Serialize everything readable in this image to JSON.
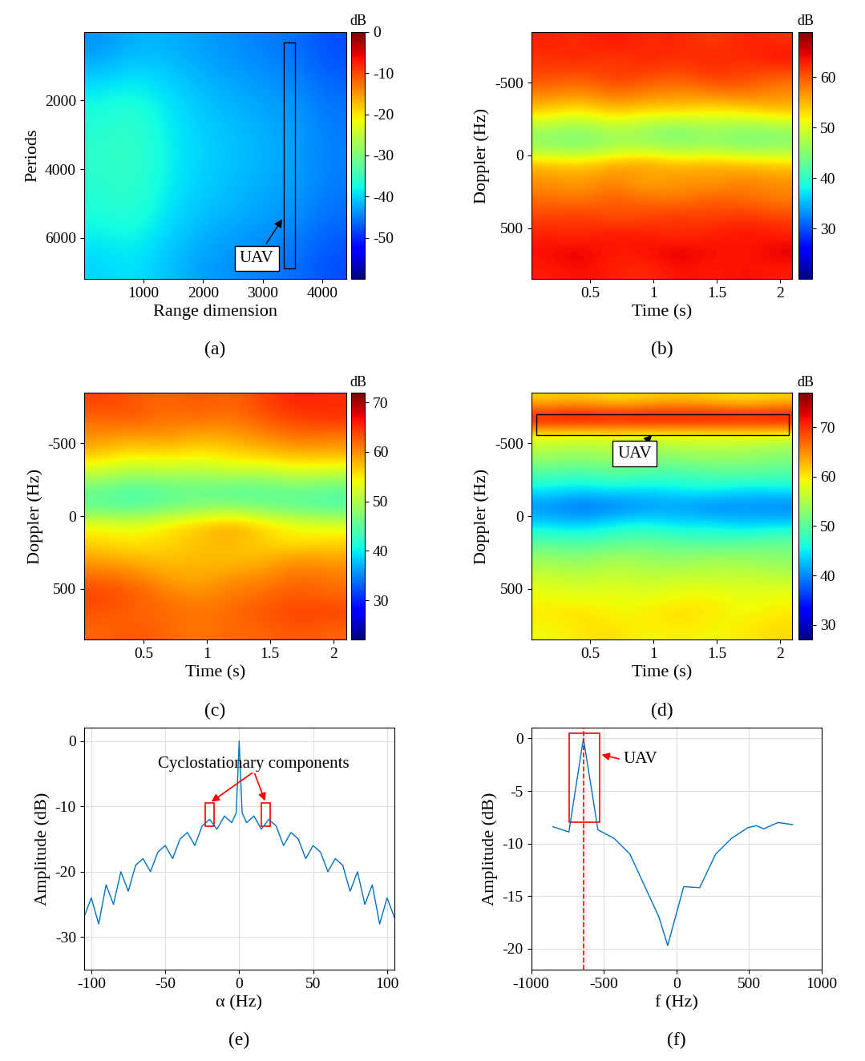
{
  "chart_data": [
    {
      "type": "heatmap",
      "panel_label": "(a)",
      "x_label": "Range dimension",
      "y_label": "Periods",
      "xlim": [
        0,
        4400
      ],
      "ylim": [
        7200,
        0
      ],
      "xticks": [
        1000,
        2000,
        3000,
        4000
      ],
      "yticks": [
        2000,
        4000,
        6000
      ],
      "colorbar": {
        "label": "dB",
        "range": [
          -60,
          0
        ],
        "ticks": [
          -50,
          -40,
          -30,
          -20,
          -10,
          0
        ]
      },
      "cells": [
        [
          -44,
          -42,
          -42,
          -43,
          -44,
          -45,
          -46,
          -48
        ],
        [
          -38,
          -37,
          -39,
          -41,
          -42,
          -43,
          -44,
          -46
        ],
        [
          -36,
          -35,
          -38,
          -40,
          -41,
          -42,
          -43,
          -45
        ],
        [
          -36,
          -35,
          -38,
          -40,
          -41,
          -42,
          -43,
          -45
        ],
        [
          -37,
          -36,
          -39,
          -41,
          -42,
          -43,
          -44,
          -46
        ],
        [
          -40,
          -39,
          -41,
          -43,
          -44,
          -45,
          -46,
          -48
        ]
      ],
      "annotation": {
        "text": "UAV",
        "color": "black",
        "box": {
          "x": [
            3350,
            3550
          ],
          "y": [
            300,
            6900
          ]
        },
        "xy": [
          3350,
          5400
        ],
        "xytext": [
          2900,
          6600
        ]
      }
    },
    {
      "type": "heatmap",
      "panel_label": "(b)",
      "x_label": "Time (s)",
      "y_label": "Doppler (Hz)",
      "xlim": [
        0.03,
        2.1
      ],
      "ylim": [
        850,
        -850
      ],
      "xticks": [
        0.5,
        1,
        1.5,
        2
      ],
      "yticks": [
        -500,
        0,
        500
      ],
      "colorbar": {
        "label": "dB",
        "range": [
          20,
          69
        ],
        "ticks": [
          30,
          40,
          50,
          60
        ]
      },
      "cells": [
        [
          63,
          62,
          64,
          62,
          63,
          61,
          63,
          62
        ],
        [
          62,
          63,
          61,
          63,
          62,
          63,
          62,
          64
        ],
        [
          61,
          60,
          62,
          61,
          60,
          62,
          61,
          60
        ],
        [
          58,
          57,
          59,
          58,
          57,
          58,
          59,
          57
        ],
        [
          54,
          52,
          55,
          53,
          54,
          52,
          53,
          55
        ],
        [
          47,
          45,
          48,
          46,
          44,
          47,
          45,
          46
        ],
        [
          45,
          44,
          46,
          47,
          45,
          46,
          44,
          45
        ],
        [
          55,
          54,
          56,
          57,
          55,
          56,
          55,
          54
        ],
        [
          57,
          56,
          58,
          55,
          57,
          56,
          58,
          57
        ],
        [
          59,
          58,
          60,
          59,
          58,
          60,
          59,
          58
        ],
        [
          61,
          62,
          60,
          61,
          62,
          61,
          62,
          61
        ],
        [
          63,
          62,
          64,
          63,
          62,
          63,
          64,
          63
        ],
        [
          64,
          65,
          63,
          64,
          65,
          64,
          63,
          65
        ],
        [
          63,
          64,
          63,
          62,
          64,
          63,
          64,
          63
        ]
      ]
    },
    {
      "type": "heatmap",
      "panel_label": "(c)",
      "x_label": "Time (s)",
      "y_label": "Doppler (Hz)",
      "xlim": [
        0.03,
        2.1
      ],
      "ylim": [
        850,
        -850
      ],
      "xticks": [
        0.5,
        1,
        1.5,
        2
      ],
      "yticks": [
        -500,
        0,
        500
      ],
      "colorbar": {
        "label": "dB",
        "range": [
          22,
          72
        ],
        "ticks": [
          30,
          40,
          50,
          60,
          70
        ]
      },
      "cells": [
        [
          64,
          63,
          62,
          63,
          62,
          64,
          66,
          65
        ],
        [
          62,
          63,
          61,
          62,
          61,
          63,
          64,
          65
        ],
        [
          60,
          59,
          60,
          58,
          59,
          60,
          62,
          61
        ],
        [
          57,
          55,
          56,
          55,
          56,
          57,
          58,
          58
        ],
        [
          52,
          50,
          51,
          50,
          52,
          51,
          53,
          52
        ],
        [
          46,
          44,
          45,
          46,
          44,
          45,
          46,
          45
        ],
        [
          45,
          44,
          46,
          47,
          48,
          46,
          45,
          44
        ],
        [
          54,
          53,
          55,
          57,
          59,
          56,
          54,
          53
        ],
        [
          56,
          55,
          56,
          57,
          58,
          56,
          55,
          56
        ],
        [
          59,
          58,
          57,
          58,
          57,
          58,
          60,
          59
        ],
        [
          62,
          61,
          59,
          58,
          60,
          60,
          62,
          61
        ],
        [
          64,
          63,
          61,
          60,
          61,
          62,
          63,
          62
        ],
        [
          63,
          62,
          62,
          61,
          62,
          63,
          64,
          64
        ],
        [
          62,
          63,
          62,
          61,
          62,
          62,
          63,
          62
        ]
      ]
    },
    {
      "type": "heatmap",
      "panel_label": "(d)",
      "x_label": "Time (s)",
      "y_label": "Doppler (Hz)",
      "xlim": [
        0.03,
        2.1
      ],
      "ylim": [
        850,
        -850
      ],
      "xticks": [
        0.5,
        1,
        1.5,
        2
      ],
      "yticks": [
        -500,
        0,
        500
      ],
      "colorbar": {
        "label": "dB",
        "range": [
          27,
          77
        ],
        "ticks": [
          30,
          40,
          50,
          60,
          70
        ]
      },
      "cells": [
        [
          61,
          62,
          60,
          61,
          62,
          61,
          60,
          61
        ],
        [
          74,
          75,
          74,
          75,
          74,
          75,
          74,
          75
        ],
        [
          58,
          57,
          58,
          57,
          58,
          57,
          58,
          57
        ],
        [
          55,
          54,
          55,
          53,
          54,
          55,
          54,
          53
        ],
        [
          50,
          49,
          51,
          50,
          49,
          50,
          51,
          50
        ],
        [
          45,
          44,
          45,
          44,
          45,
          46,
          44,
          45
        ],
        [
          40,
          38,
          39,
          40,
          41,
          39,
          40,
          39
        ],
        [
          44,
          43,
          45,
          46,
          44,
          45,
          43,
          44
        ],
        [
          50,
          49,
          50,
          51,
          50,
          49,
          50,
          51
        ],
        [
          54,
          53,
          55,
          54,
          53,
          55,
          54,
          53
        ],
        [
          57,
          56,
          57,
          56,
          57,
          56,
          57,
          56
        ],
        [
          59,
          58,
          59,
          58,
          59,
          60,
          58,
          59
        ],
        [
          60,
          61,
          59,
          60,
          61,
          60,
          59,
          60
        ],
        [
          59,
          60,
          61,
          59,
          60,
          59,
          60,
          61
        ]
      ],
      "annotation": {
        "text": "UAV",
        "color": "black",
        "box": {
          "x": [
            0.07,
            2.07
          ],
          "y": [
            -700,
            -560
          ]
        },
        "xy": [
          1.0,
          -570
        ],
        "xytext": [
          0.85,
          -430
        ]
      }
    },
    {
      "type": "line",
      "panel_label": "(e)",
      "x_label": "α (Hz)",
      "y_label": "Amplitude (dB)",
      "xlim": [
        -105,
        105
      ],
      "ylim": [
        -35,
        2
      ],
      "xticks": [
        -100,
        -50,
        0,
        50,
        100
      ],
      "yticks": [
        -30,
        -20,
        -10,
        0
      ],
      "grid": true,
      "color": "#0072BD",
      "x": [
        -105,
        -100,
        -95,
        -90,
        -85,
        -80,
        -75,
        -70,
        -65,
        -60,
        -55,
        -50,
        -45,
        -40,
        -35,
        -30,
        -25,
        -20,
        -15,
        -10,
        -5,
        -2,
        0,
        2,
        5,
        10,
        15,
        20,
        25,
        30,
        35,
        40,
        45,
        50,
        55,
        60,
        65,
        70,
        75,
        80,
        85,
        90,
        95,
        100,
        105
      ],
      "values": [
        -27,
        -24,
        -28,
        -22,
        -25,
        -20,
        -23,
        -19,
        -18,
        -20,
        -17,
        -16,
        -18,
        -15,
        -14,
        -16,
        -13,
        -12,
        -13.5,
        -11.5,
        -12.5,
        -11,
        0,
        -11,
        -12.5,
        -11.5,
        -13.5,
        -12,
        -13,
        -16,
        -14,
        -15,
        -18,
        -16,
        -17,
        -20,
        -18,
        -19,
        -23,
        -20,
        -25,
        -22,
        -28,
        -24,
        -27
      ],
      "annotation": {
        "text": "Cyclostationary components",
        "color": "red",
        "boxes": [
          {
            "x": [
              -23,
              -17
            ],
            "y": [
              -13,
              -9.5
            ]
          },
          {
            "x": [
              15,
              21
            ],
            "y": [
              -13,
              -9.5
            ]
          }
        ],
        "arrows_to": [
          [
            -20,
            -9.5
          ],
          [
            18,
            -9.5
          ]
        ],
        "xytext": [
          10,
          -3.5
        ]
      }
    },
    {
      "type": "line",
      "panel_label": "(f)",
      "x_label": "f (Hz)",
      "y_label": "Amplitude (dB)",
      "xlim": [
        -1000,
        1000
      ],
      "ylim": [
        -22,
        1
      ],
      "xticks": [
        -1000,
        -500,
        0,
        500,
        1000
      ],
      "yticks": [
        -20,
        -15,
        -10,
        -5,
        0
      ],
      "grid": true,
      "color": "#0072BD",
      "marker_line": -640,
      "x": [
        -850,
        -740,
        -640,
        -540,
        -430,
        -320,
        -220,
        -120,
        -60,
        50,
        160,
        270,
        380,
        490,
        550,
        600,
        700,
        800
      ],
      "values": [
        -8.4,
        -8.9,
        0,
        -8.7,
        -9.5,
        -11,
        -14,
        -17,
        -19.7,
        -14.1,
        -14.2,
        -11,
        -9.5,
        -8.5,
        -8.3,
        -8.6,
        -8,
        -8.2
      ],
      "annotation": {
        "text": "UAV",
        "color": "red",
        "boxes": [
          {
            "x": [
              -740,
              -530
            ],
            "y": [
              -8,
              0.5
            ]
          }
        ],
        "arrows_to": [
          [
            -530,
            -1.5
          ]
        ],
        "xytext": [
          -250,
          -2
        ]
      }
    }
  ]
}
